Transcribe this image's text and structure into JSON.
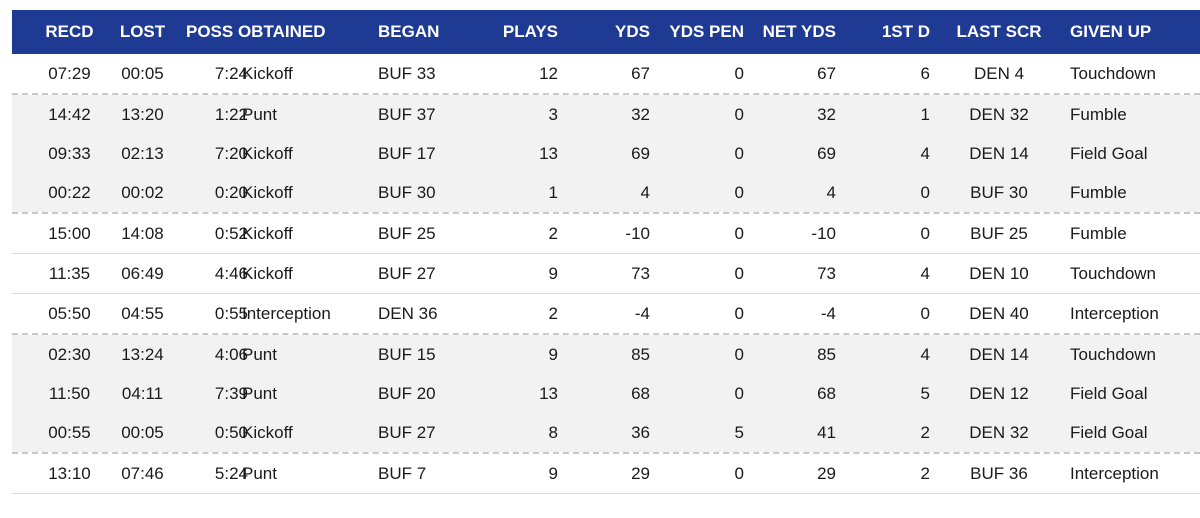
{
  "headers": {
    "recd": "RECD",
    "lost": "LOST",
    "poss_obtained": "POSS OBTAINED",
    "began": "BEGAN",
    "plays": "PLAYS",
    "yds": "YDS",
    "yds_pen": "YDS PEN",
    "net_yds": "NET YDS",
    "first_d": "1ST D",
    "last_scr": "LAST SCR",
    "given_up": "GIVEN UP"
  },
  "colors": {
    "header_bg": "#1f3a93",
    "alt_row": "#f2f2f2"
  },
  "rows": [
    {
      "recd": "07:29",
      "lost": "00:05",
      "poss_time": "7:24",
      "poss_type": "Kickoff",
      "began": "BUF 33",
      "plays": "12",
      "yds": "67",
      "yds_pen": "0",
      "net_yds": "67",
      "first_d": "6",
      "last_scr": "DEN 4",
      "given_up": "Touchdown",
      "alt": false,
      "sep": "dash"
    },
    {
      "recd": "14:42",
      "lost": "13:20",
      "poss_time": "1:22",
      "poss_type": "Punt",
      "began": "BUF 37",
      "plays": "3",
      "yds": "32",
      "yds_pen": "0",
      "net_yds": "32",
      "first_d": "1",
      "last_scr": "DEN 32",
      "given_up": "Fumble",
      "alt": true,
      "sep": "none"
    },
    {
      "recd": "09:33",
      "lost": "02:13",
      "poss_time": "7:20",
      "poss_type": "Kickoff",
      "began": "BUF 17",
      "plays": "13",
      "yds": "69",
      "yds_pen": "0",
      "net_yds": "69",
      "first_d": "4",
      "last_scr": "DEN 14",
      "given_up": "Field Goal",
      "alt": true,
      "sep": "none"
    },
    {
      "recd": "00:22",
      "lost": "00:02",
      "poss_time": "0:20",
      "poss_type": "Kickoff",
      "began": "BUF 30",
      "plays": "1",
      "yds": "4",
      "yds_pen": "0",
      "net_yds": "4",
      "first_d": "0",
      "last_scr": "BUF 30",
      "given_up": "Fumble",
      "alt": true,
      "sep": "dash"
    },
    {
      "recd": "15:00",
      "lost": "14:08",
      "poss_time": "0:52",
      "poss_type": "Kickoff",
      "began": "BUF 25",
      "plays": "2",
      "yds": "-10",
      "yds_pen": "0",
      "net_yds": "-10",
      "first_d": "0",
      "last_scr": "BUF 25",
      "given_up": "Fumble",
      "alt": false,
      "sep": "solid"
    },
    {
      "recd": "11:35",
      "lost": "06:49",
      "poss_time": "4:46",
      "poss_type": "Kickoff",
      "began": "BUF 27",
      "plays": "9",
      "yds": "73",
      "yds_pen": "0",
      "net_yds": "73",
      "first_d": "4",
      "last_scr": "DEN 10",
      "given_up": "Touchdown",
      "alt": false,
      "sep": "solid"
    },
    {
      "recd": "05:50",
      "lost": "04:55",
      "poss_time": "0:55",
      "poss_type": "Interception",
      "began": "DEN 36",
      "plays": "2",
      "yds": "-4",
      "yds_pen": "0",
      "net_yds": "-4",
      "first_d": "0",
      "last_scr": "DEN 40",
      "given_up": "Interception",
      "alt": false,
      "sep": "dash"
    },
    {
      "recd": "02:30",
      "lost": "13:24",
      "poss_time": "4:06",
      "poss_type": "Punt",
      "began": "BUF 15",
      "plays": "9",
      "yds": "85",
      "yds_pen": "0",
      "net_yds": "85",
      "first_d": "4",
      "last_scr": "DEN 14",
      "given_up": "Touchdown",
      "alt": true,
      "sep": "none"
    },
    {
      "recd": "11:50",
      "lost": "04:11",
      "poss_time": "7:39",
      "poss_type": "Punt",
      "began": "BUF 20",
      "plays": "13",
      "yds": "68",
      "yds_pen": "0",
      "net_yds": "68",
      "first_d": "5",
      "last_scr": "DEN 12",
      "given_up": "Field Goal",
      "alt": true,
      "sep": "none"
    },
    {
      "recd": "00:55",
      "lost": "00:05",
      "poss_time": "0:50",
      "poss_type": "Kickoff",
      "began": "BUF 27",
      "plays": "8",
      "yds": "36",
      "yds_pen": "5",
      "net_yds": "41",
      "first_d": "2",
      "last_scr": "DEN 32",
      "given_up": "Field Goal",
      "alt": true,
      "sep": "dash"
    },
    {
      "recd": "13:10",
      "lost": "07:46",
      "poss_time": "5:24",
      "poss_type": "Punt",
      "began": "BUF 7",
      "plays": "9",
      "yds": "29",
      "yds_pen": "0",
      "net_yds": "29",
      "first_d": "2",
      "last_scr": "BUF 36",
      "given_up": "Interception",
      "alt": false,
      "sep": "solid"
    }
  ]
}
